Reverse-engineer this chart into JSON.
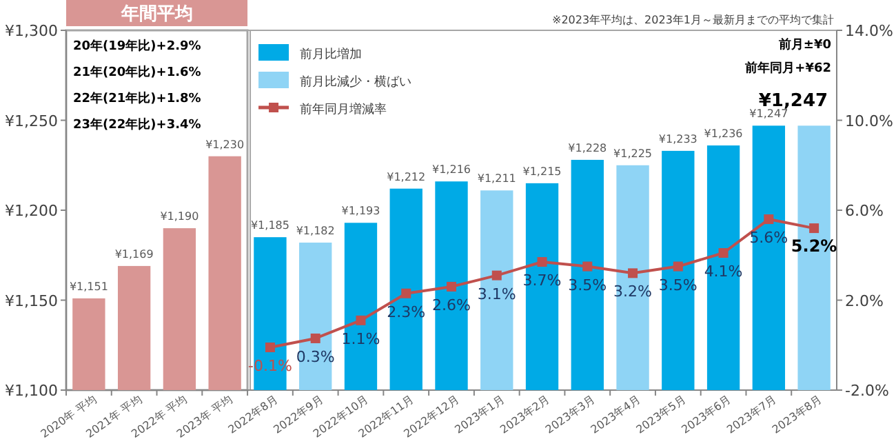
{
  "chart_data": {
    "type": "bar",
    "categories": [
      "2020年 平均",
      "2021年 平均",
      "2022年 平均",
      "2023年 平均",
      "2022年8月",
      "2022年9月",
      "2022年10月",
      "2022年11月",
      "2022年12月",
      "2023年1月",
      "2023年2月",
      "2023年3月",
      "2023年4月",
      "2023年5月",
      "2023年6月",
      "2023年7月",
      "2023年8月"
    ],
    "series": [
      {
        "color": "#d99694",
        "values": [
          1151,
          1169,
          1190,
          1230,
          null,
          null,
          null,
          null,
          null,
          null,
          null,
          null,
          null,
          null,
          null,
          null,
          null
        ],
        "value_labels": [
          "¥1,151",
          "¥1,169",
          "¥1,190",
          "¥1,230",
          null,
          null,
          null,
          null,
          null,
          null,
          null,
          null,
          null,
          null,
          null,
          null,
          null
        ]
      },
      {
        "name": "前月比増加",
        "color": "#00aae6",
        "values": [
          null,
          null,
          null,
          null,
          1185,
          null,
          1193,
          1212,
          1216,
          null,
          1215,
          1228,
          null,
          1233,
          1236,
          1247,
          null
        ],
        "value_labels": [
          null,
          null,
          null,
          null,
          "¥1,185",
          null,
          "¥1,193",
          "¥1,212",
          "¥1,216",
          null,
          "¥1,215",
          "¥1,228",
          null,
          "¥1,233",
          "¥1,236",
          "¥1,247",
          null
        ]
      },
      {
        "name": "前月比減少・横ばい",
        "color": "#8fd4f5",
        "values": [
          null,
          null,
          null,
          null,
          null,
          1182,
          null,
          null,
          null,
          1211,
          null,
          null,
          1225,
          null,
          null,
          null,
          1247
        ],
        "value_labels": [
          null,
          null,
          null,
          null,
          null,
          "¥1,182",
          null,
          null,
          null,
          "¥1,211",
          null,
          null,
          "¥1,225",
          null,
          null,
          null,
          null
        ]
      },
      {
        "name": "前年同月増減率",
        "type": "line",
        "axis": "y2",
        "color": "#c0504d",
        "marker": "square",
        "line_style": "solid",
        "values": [
          null,
          null,
          null,
          null,
          -0.1,
          0.3,
          1.1,
          2.3,
          2.6,
          3.1,
          3.7,
          3.5,
          3.2,
          3.5,
          4.1,
          5.6,
          5.2
        ],
        "value_labels": [
          null,
          null,
          null,
          null,
          "-0.1%",
          "0.3%",
          "1.1%",
          "2.3%",
          "2.6%",
          "3.1%",
          "3.7%",
          "3.5%",
          "3.2%",
          "3.5%",
          "4.1%",
          "5.6%",
          "5.2%"
        ]
      }
    ],
    "ylim": [
      1100,
      1300
    ],
    "yticks": [
      {
        "value": 1100,
        "label": "¥1,100"
      },
      {
        "value": 1150,
        "label": "¥1,150"
      },
      {
        "value": 1200,
        "label": "¥1,200"
      },
      {
        "value": 1250,
        "label": "¥1,250"
      },
      {
        "value": 1300,
        "label": "¥1,300"
      }
    ],
    "y2lim": [
      -2,
      14
    ],
    "y2ticks": [
      {
        "value": -2,
        "label": "-2.0%"
      },
      {
        "value": 2,
        "label": "2.0%"
      },
      {
        "value": 6,
        "label": "6.0%"
      },
      {
        "value": 10,
        "label": "10.0%"
      },
      {
        "value": 14,
        "label": "14.0%"
      }
    ],
    "legend": "top left",
    "grid": false,
    "annotations": [
      "年間平均",
      "20年(19年比)+2.9%",
      "21年(20年比)+1.6%",
      "22年(21年比)+1.8%",
      "23年(22年比)+3.4%",
      "※2023年平均は、2023年1月～最新月までの平均で集計",
      "前月±¥0",
      "前年同月+¥62",
      {
        "text": "¥1,247",
        "x": "2023年8月",
        "y": 1247
      }
    ]
  }
}
